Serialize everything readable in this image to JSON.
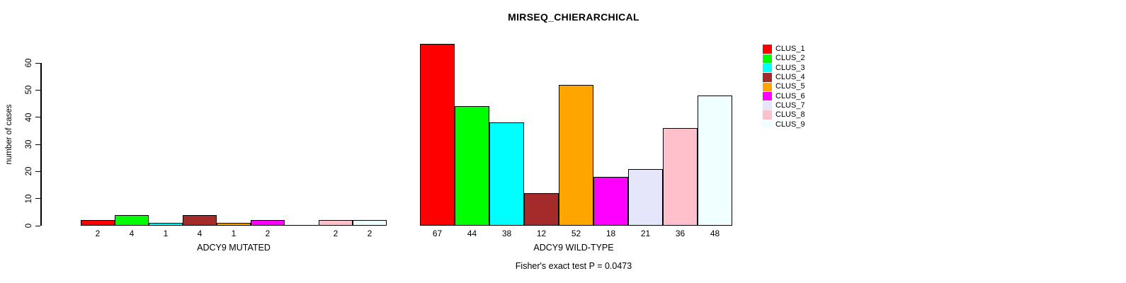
{
  "figure": {
    "title": "MIRSEQ_CHIERARCHICAL",
    "y_axis_label": "number of cases",
    "annotation": "Fisher's exact test P = 0.0473"
  },
  "chart_data": {
    "type": "bar",
    "title": "MIRSEQ_CHIERARCHICAL",
    "xlabel": "",
    "ylabel": "number of cases",
    "ylim": [
      0,
      60
    ],
    "yticks": [
      0,
      10,
      20,
      30,
      40,
      50,
      60
    ],
    "grid": false,
    "legend_position": "right",
    "categories": [
      "CLUS_1",
      "CLUS_2",
      "CLUS_3",
      "CLUS_4",
      "CLUS_5",
      "CLUS_6",
      "CLUS_7",
      "CLUS_8",
      "CLUS_9"
    ],
    "colors": [
      "#FF0000",
      "#00FF00",
      "#00FFFF",
      "#A52A2A",
      "#FFA500",
      "#FF00FF",
      "#E6E6FA",
      "#FFC0CB",
      "#F0FFFF"
    ],
    "bar_border_color": "#000000",
    "groups": [
      {
        "label": "ADCY9 MUTATED",
        "values": [
          2,
          4,
          1,
          4,
          1,
          2,
          0,
          2,
          2
        ]
      },
      {
        "label": "ADCY9 WILD-TYPE",
        "values": [
          67,
          44,
          38,
          12,
          52,
          18,
          21,
          36,
          48
        ]
      }
    ],
    "annotation": "Fisher's exact test P = 0.0473"
  }
}
